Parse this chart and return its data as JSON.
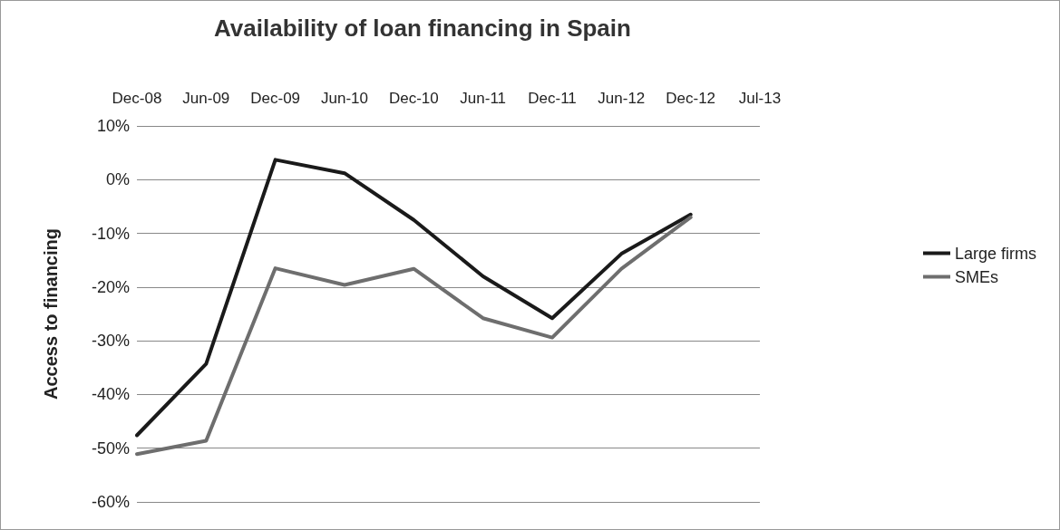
{
  "chart_data": {
    "type": "line",
    "title": "Availability of loan financing in Spain",
    "ylabel": "Access to financing",
    "categories": [
      "Dec-08",
      "Jun-09",
      "Dec-09",
      "Jun-10",
      "Dec-10",
      "Jun-11",
      "Dec-11",
      "Jun-12",
      "Dec-12",
      "Jul-13"
    ],
    "series": [
      {
        "name": "Large firms",
        "color": "#1a1a1a",
        "values": [
          -47.6,
          -34.3,
          3.7,
          1.2,
          -7.5,
          -18,
          -25.8,
          -13.8,
          -6.5,
          null
        ]
      },
      {
        "name": "SMEs",
        "color": "#6e6e6e",
        "values": [
          -51.1,
          -48.6,
          -16.5,
          -19.6,
          -16.6,
          -25.8,
          -29.4,
          -16.6,
          -7,
          null
        ]
      }
    ],
    "ylim": [
      -60,
      10
    ],
    "yticks": [
      {
        "value": -60,
        "label": "-60%"
      },
      {
        "value": -50,
        "label": "-50%"
      },
      {
        "value": -40,
        "label": "-40%"
      },
      {
        "value": -30,
        "label": "-30%"
      },
      {
        "value": -20,
        "label": "-20%"
      },
      {
        "value": -10,
        "label": "-10%"
      },
      {
        "value": 0,
        "label": "0%"
      },
      {
        "value": 10,
        "label": "10%"
      }
    ],
    "grid": "y",
    "legend": "right",
    "marker": "none",
    "line_style": "solid"
  }
}
